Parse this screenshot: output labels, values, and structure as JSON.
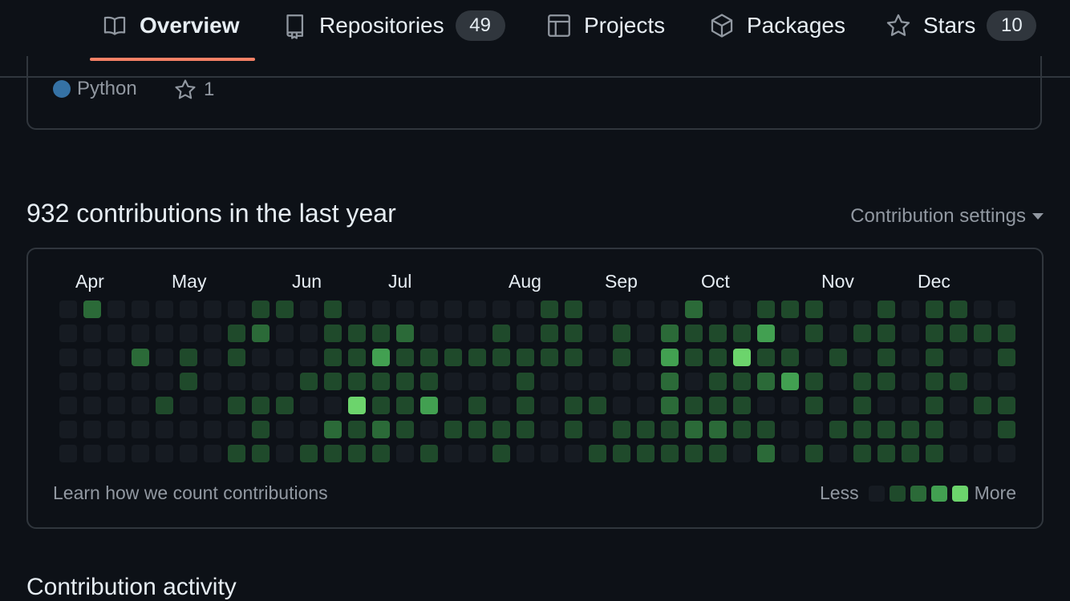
{
  "nav": {
    "tabs": [
      {
        "label": "Overview",
        "icon": "book-icon",
        "active": true
      },
      {
        "label": "Repositories",
        "icon": "repo-icon",
        "count": "49"
      },
      {
        "label": "Projects",
        "icon": "table-icon"
      },
      {
        "label": "Packages",
        "icon": "package-icon"
      },
      {
        "label": "Stars",
        "icon": "star-icon",
        "count": "10"
      }
    ]
  },
  "repo": {
    "language": "Python",
    "language_color": "#3572A5",
    "stars": "1"
  },
  "contributions": {
    "heading": "932 contributions in the last year",
    "settings_label": "Contribution settings",
    "months": [
      "Apr",
      "May",
      "Jun",
      "Jul",
      "Aug",
      "Sep",
      "Oct",
      "Nov",
      "Dec"
    ],
    "learn_link": "Learn how we count contributions",
    "legend_less": "Less",
    "legend_more": "More",
    "colors": [
      "#161b22",
      "#1f4a2b",
      "#2b6a38",
      "#42a051",
      "#6cd46c"
    ],
    "grid": [
      [
        0,
        0,
        0,
        0,
        0,
        0,
        0
      ],
      [
        2,
        0,
        0,
        0,
        0,
        0,
        0
      ],
      [
        0,
        0,
        0,
        0,
        0,
        0,
        0
      ],
      [
        0,
        0,
        2,
        0,
        0,
        0,
        0
      ],
      [
        0,
        0,
        0,
        0,
        1,
        0,
        0
      ],
      [
        0,
        0,
        1,
        1,
        0,
        0,
        0
      ],
      [
        0,
        0,
        0,
        0,
        0,
        0,
        0
      ],
      [
        0,
        1,
        1,
        0,
        1,
        0,
        1
      ],
      [
        1,
        2,
        0,
        0,
        1,
        1,
        1
      ],
      [
        1,
        0,
        0,
        0,
        1,
        0,
        0
      ],
      [
        0,
        0,
        0,
        1,
        0,
        0,
        1
      ],
      [
        1,
        1,
        1,
        1,
        0,
        2,
        1
      ],
      [
        0,
        1,
        1,
        1,
        4,
        1,
        1
      ],
      [
        0,
        1,
        3,
        1,
        1,
        2,
        1
      ],
      [
        0,
        2,
        1,
        1,
        1,
        1,
        0
      ],
      [
        0,
        0,
        1,
        1,
        3,
        0,
        1
      ],
      [
        0,
        0,
        1,
        0,
        0,
        1,
        0
      ],
      [
        0,
        0,
        1,
        0,
        1,
        1,
        0
      ],
      [
        0,
        1,
        1,
        0,
        0,
        1,
        1
      ],
      [
        0,
        0,
        1,
        1,
        1,
        1,
        0
      ],
      [
        1,
        1,
        1,
        0,
        0,
        0,
        0
      ],
      [
        1,
        1,
        1,
        0,
        1,
        1,
        0
      ],
      [
        0,
        0,
        0,
        0,
        1,
        0,
        1
      ],
      [
        0,
        1,
        1,
        0,
        0,
        1,
        1
      ],
      [
        0,
        0,
        0,
        0,
        0,
        1,
        1
      ],
      [
        0,
        2,
        3,
        2,
        2,
        1,
        1
      ],
      [
        2,
        1,
        1,
        0,
        1,
        2,
        1
      ],
      [
        0,
        1,
        1,
        1,
        1,
        2,
        1
      ],
      [
        0,
        1,
        4,
        1,
        1,
        1,
        0
      ],
      [
        1,
        3,
        1,
        2,
        0,
        1,
        2
      ],
      [
        1,
        0,
        1,
        3,
        0,
        0,
        0
      ],
      [
        1,
        1,
        0,
        1,
        1,
        0,
        1
      ],
      [
        0,
        0,
        1,
        0,
        0,
        1,
        0
      ],
      [
        0,
        1,
        0,
        1,
        1,
        1,
        1
      ],
      [
        1,
        1,
        1,
        1,
        0,
        1,
        1
      ],
      [
        0,
        0,
        0,
        0,
        0,
        1,
        1
      ],
      [
        1,
        1,
        1,
        1,
        1,
        1,
        1
      ],
      [
        1,
        1,
        0,
        1,
        0,
        0,
        0
      ],
      [
        0,
        1,
        0,
        0,
        1,
        0,
        0
      ],
      [
        0,
        1,
        1,
        0,
        1,
        1,
        0
      ]
    ]
  },
  "activity": {
    "heading": "Contribution activity"
  }
}
